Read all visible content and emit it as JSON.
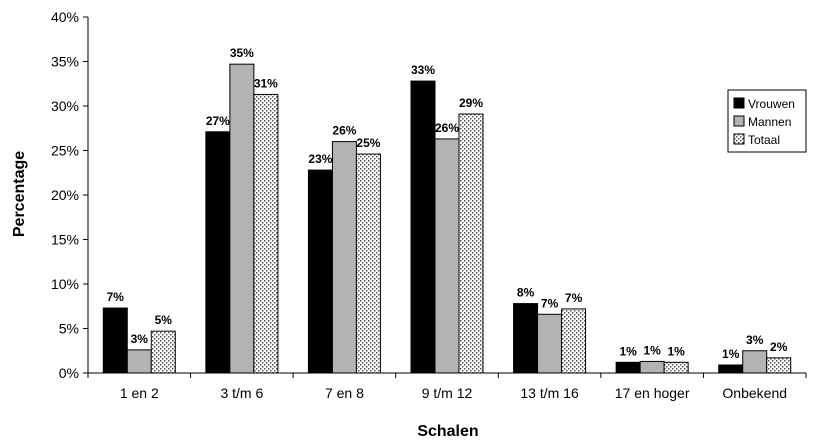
{
  "chart_data": {
    "type": "bar",
    "xlabel": "Schalen",
    "ylabel": "Percentage",
    "ylim": [
      0,
      40
    ],
    "yticks": [
      "0%",
      "5%",
      "10%",
      "15%",
      "20%",
      "25%",
      "30%",
      "35%",
      "40%"
    ],
    "grid": false,
    "legend_position": "right",
    "categories": [
      "1 en 2",
      "3 t/m 6",
      "7 en 8",
      "9 t/m 12",
      "13 t/m 16",
      "17 en hoger",
      "Onbekend"
    ],
    "series": [
      {
        "name": "Vrouwen",
        "color": "#000000",
        "pattern": "solid",
        "values": [
          7.3,
          27.1,
          22.8,
          32.8,
          7.8,
          1.2,
          0.9
        ],
        "labels": [
          "7%",
          "27%",
          "23%",
          "33%",
          "8%",
          "1%",
          "1%"
        ]
      },
      {
        "name": "Mannen",
        "color": "#b3b3b3",
        "pattern": "solid",
        "values": [
          2.6,
          34.7,
          26.0,
          26.3,
          6.6,
          1.3,
          2.5
        ],
        "labels": [
          "3%",
          "35%",
          "26%",
          "26%",
          "7%",
          "1%",
          "3%"
        ]
      },
      {
        "name": "Totaal",
        "color": "#ffffff",
        "pattern": "dotted",
        "values": [
          4.7,
          31.3,
          24.6,
          29.1,
          7.2,
          1.2,
          1.7
        ],
        "labels": [
          "5%",
          "31%",
          "25%",
          "29%",
          "7%",
          "1%",
          "2%"
        ]
      }
    ]
  }
}
